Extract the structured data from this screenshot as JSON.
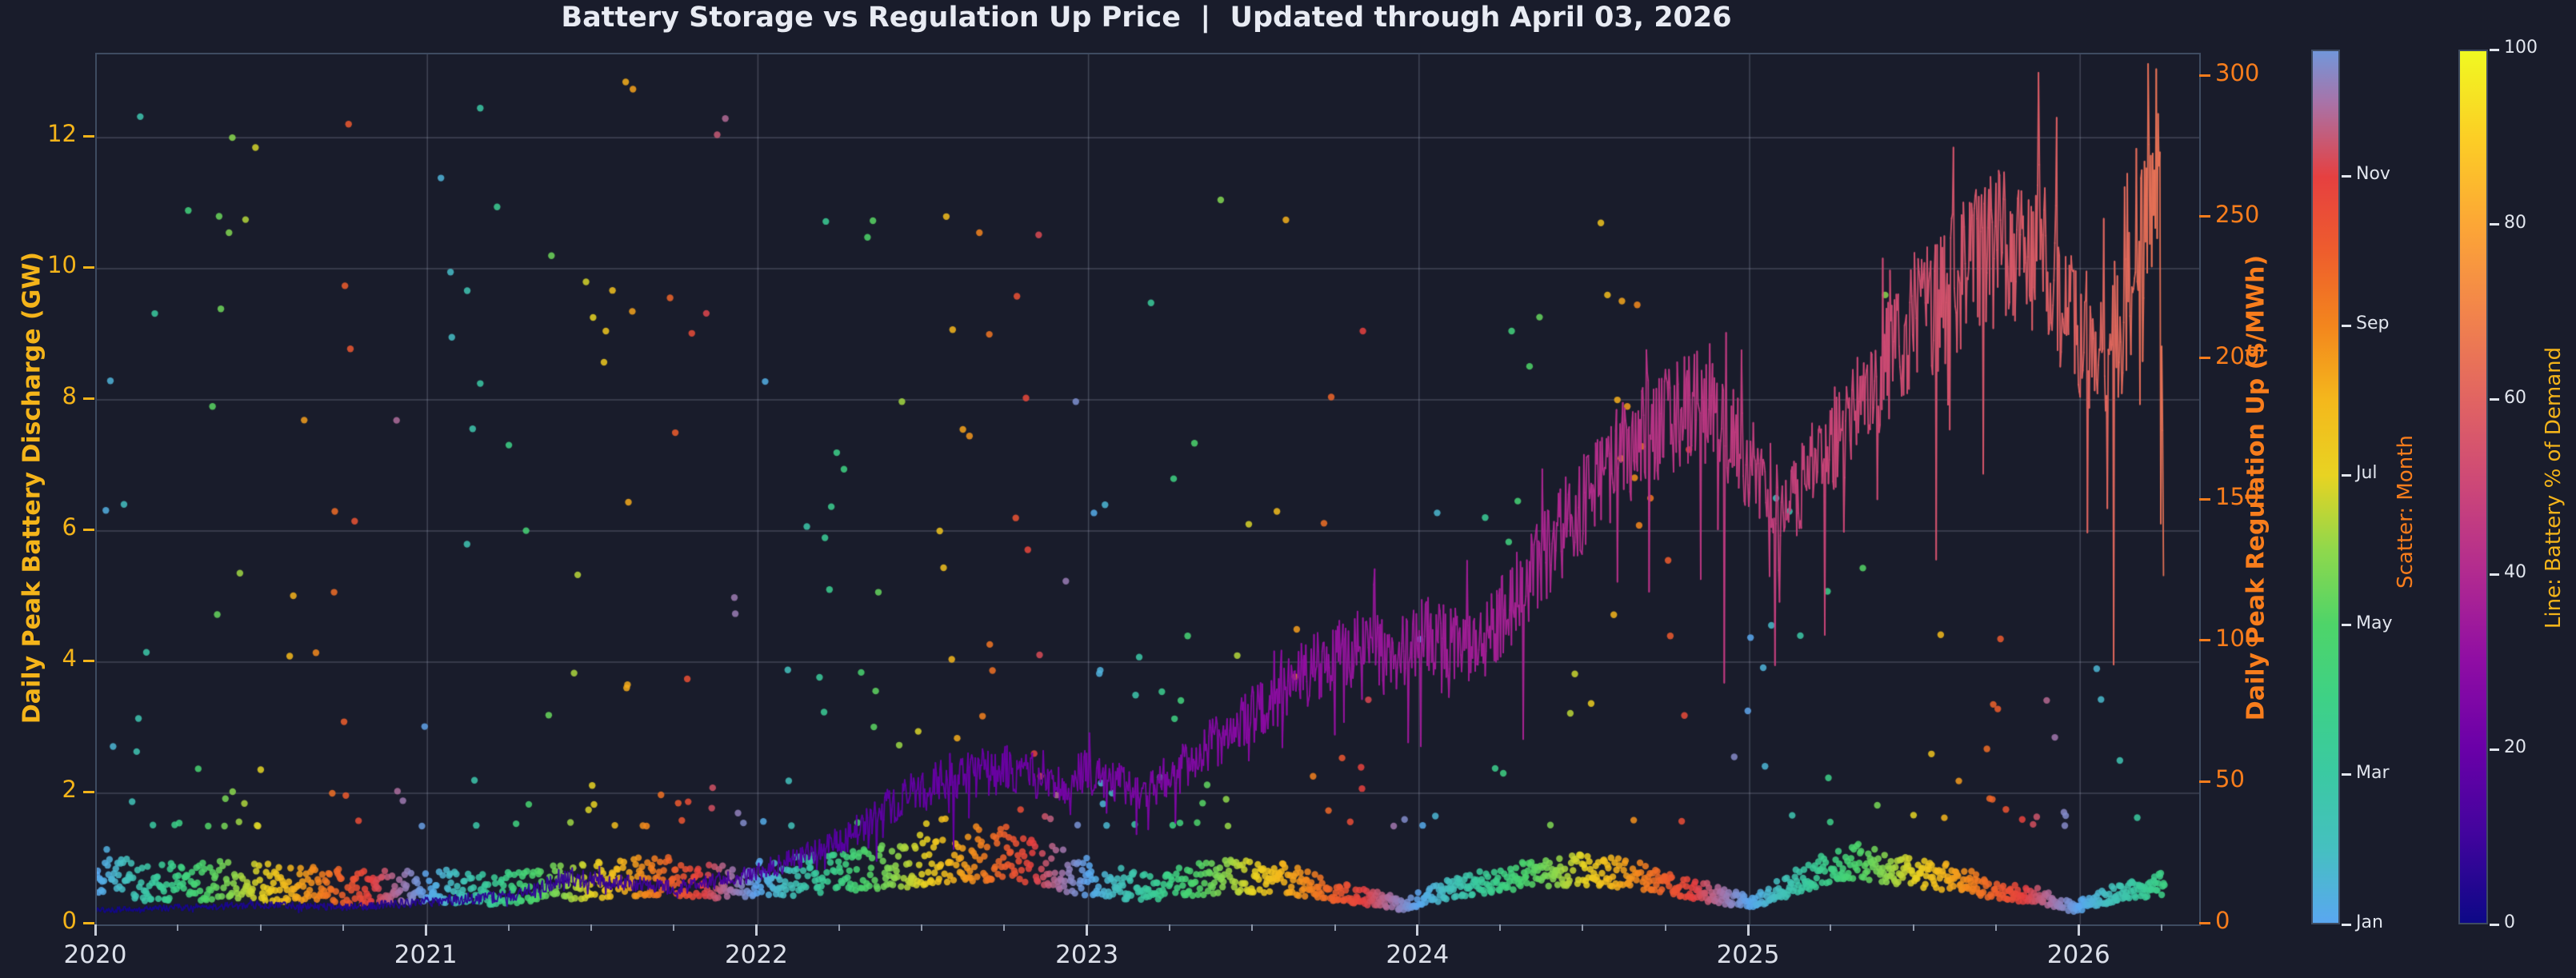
{
  "colors": {
    "background": "#191c2b",
    "plot_border": "#3e4b61",
    "title_text": "#e8ebf3",
    "x_tick_text": "#dce0ea",
    "grid": "rgba(158,167,184,0.30)",
    "left_accent": "#f4b41a",
    "right_accent": "#f87d1c",
    "colorbar_tick_text": "#e2e6ee"
  },
  "chart_data": {
    "type": "scatter+line",
    "title": "Battery Storage vs Regulation Up Price  |  Updated through April 03, 2026",
    "x_axis": {
      "tick_values": [
        2020,
        2021,
        2022,
        2023,
        2024,
        2025,
        2026
      ],
      "tick_labels": [
        "2020",
        "2021",
        "2022",
        "2023",
        "2024",
        "2025",
        "2026"
      ],
      "minor_tick_step": 0.25,
      "range": [
        2020.0,
        2026.36
      ]
    },
    "left_axis": {
      "label": "Daily Peak Battery Discharge (GW)",
      "ticks": [
        0,
        2,
        4,
        6,
        8,
        10,
        12
      ],
      "range": [
        0,
        13.27
      ],
      "color": "#f4b41a"
    },
    "right_axis": {
      "label": "Daily Peak Regulation Up ($/MWh)",
      "ticks": [
        0,
        50,
        100,
        150,
        200,
        250,
        300
      ],
      "range": [
        0,
        308
      ],
      "color": "#f87d1c"
    },
    "month_colorbar": {
      "label": "Scatter: Month",
      "tick_labels": [
        "Jan",
        "Mar",
        "May",
        "Jul",
        "Sep",
        "Nov"
      ],
      "tick_months": [
        1,
        3,
        5,
        7,
        9,
        11
      ],
      "domain": [
        1,
        12.69
      ],
      "colors": [
        "#5aa7f0",
        "#45c0c0",
        "#3bc9a2",
        "#3ed186",
        "#4ed469",
        "#8fd84c",
        "#e8d322",
        "#f4b81c",
        "#f3861d",
        "#ee5d2d",
        "#e64040",
        "#a873a8"
      ]
    },
    "pct_colorbar": {
      "label": "Line: Battery % of Demand",
      "ticks": [
        0,
        20,
        40,
        60,
        80,
        100
      ],
      "range": [
        0,
        100
      ],
      "plasma_stops": [
        "#0d0887",
        "#41049d",
        "#6a00a8",
        "#8f0da4",
        "#b12a90",
        "#cc4778",
        "#e16462",
        "#f2844b",
        "#fca636",
        "#fcce25",
        "#f0f921"
      ]
    },
    "line_series": {
      "name": "Daily Peak Regulation Up ($/MWh), colored by Battery % of Demand",
      "anchors": [
        [
          2020.0,
          5,
          1
        ],
        [
          2020.25,
          6,
          2
        ],
        [
          2020.5,
          7,
          3
        ],
        [
          2020.75,
          6,
          4
        ],
        [
          2021.0,
          8,
          5
        ],
        [
          2021.25,
          10,
          7
        ],
        [
          2021.42,
          17,
          8
        ],
        [
          2021.58,
          15,
          9
        ],
        [
          2021.75,
          13,
          11
        ],
        [
          2022.0,
          18,
          13
        ],
        [
          2022.25,
          30,
          16
        ],
        [
          2022.42,
          44,
          18
        ],
        [
          2022.58,
          52,
          20
        ],
        [
          2022.75,
          55,
          21
        ],
        [
          2022.92,
          50,
          23
        ],
        [
          2023.0,
          54,
          24
        ],
        [
          2023.17,
          47,
          25
        ],
        [
          2023.33,
          60,
          27
        ],
        [
          2023.5,
          74,
          29
        ],
        [
          2023.67,
          90,
          31
        ],
        [
          2023.83,
          99,
          33
        ],
        [
          2023.92,
          92,
          34
        ],
        [
          2024.0,
          103,
          35
        ],
        [
          2024.17,
          96,
          36
        ],
        [
          2024.33,
          122,
          38
        ],
        [
          2024.5,
          150,
          41
        ],
        [
          2024.625,
          167,
          43
        ],
        [
          2024.75,
          178,
          44
        ],
        [
          2024.875,
          183,
          45
        ],
        [
          2025.0,
          162,
          47
        ],
        [
          2025.125,
          147,
          48
        ],
        [
          2025.25,
          170,
          50
        ],
        [
          2025.375,
          188,
          51
        ],
        [
          2025.5,
          213,
          53
        ],
        [
          2025.625,
          228,
          55
        ],
        [
          2025.75,
          238,
          56
        ],
        [
          2025.875,
          240,
          58
        ],
        [
          2026.0,
          208,
          60
        ],
        [
          2026.08,
          196,
          61
        ],
        [
          2026.17,
          226,
          63
        ],
        [
          2026.23,
          272,
          65
        ],
        [
          2026.245,
          255,
          65
        ],
        [
          2026.253,
          112,
          65
        ]
      ],
      "noise_frac": [
        [
          2020,
          0.18
        ],
        [
          2021,
          0.22
        ],
        [
          2022,
          0.18
        ],
        [
          2023,
          0.15
        ],
        [
          2024,
          0.14
        ],
        [
          2025,
          0.11
        ],
        [
          2026.3,
          0.13
        ]
      ],
      "dip_prob": 0.05,
      "spike_prob": 0.05,
      "dip_depth": [
        [
          2020,
          0.15
        ],
        [
          2022,
          0.4
        ],
        [
          2024,
          0.5
        ],
        [
          2026.3,
          0.55
        ]
      ],
      "width": 1.8,
      "alpha": 0.95
    },
    "scatter_series": {
      "name": "Daily Peak Battery Discharge (GW), colored by Month",
      "seed": 11,
      "t_range": [
        2020.0,
        2026.255
      ],
      "points_per_year": 365,
      "base_gw": [
        [
          2020.0,
          0.75
        ],
        [
          2020.15,
          0.55
        ],
        [
          2020.4,
          0.62
        ],
        [
          2020.6,
          0.55
        ],
        [
          2020.85,
          0.5
        ],
        [
          2021.0,
          0.55
        ],
        [
          2021.2,
          0.48
        ],
        [
          2021.45,
          0.6
        ],
        [
          2021.7,
          0.68
        ],
        [
          2021.9,
          0.58
        ],
        [
          2022.1,
          0.68
        ],
        [
          2022.35,
          0.8
        ],
        [
          2022.55,
          0.95
        ],
        [
          2022.75,
          1.02
        ],
        [
          2022.9,
          0.78
        ],
        [
          2023.05,
          0.6
        ],
        [
          2023.2,
          0.52
        ],
        [
          2023.4,
          0.7
        ],
        [
          2023.6,
          0.66
        ],
        [
          2023.8,
          0.42
        ],
        [
          2023.95,
          0.3
        ],
        [
          2024.1,
          0.52
        ],
        [
          2024.3,
          0.72
        ],
        [
          2024.5,
          0.8
        ],
        [
          2024.65,
          0.72
        ],
        [
          2024.8,
          0.55
        ],
        [
          2024.95,
          0.38
        ],
        [
          2025.02,
          0.34
        ],
        [
          2025.15,
          0.65
        ],
        [
          2025.3,
          0.95
        ],
        [
          2025.45,
          0.82
        ],
        [
          2025.6,
          0.68
        ],
        [
          2025.75,
          0.52
        ],
        [
          2025.88,
          0.42
        ],
        [
          2025.98,
          0.24
        ],
        [
          2026.1,
          0.45
        ],
        [
          2026.2,
          0.55
        ],
        [
          2026.26,
          0.62
        ]
      ],
      "spread": [
        [
          2020,
          0.5
        ],
        [
          2023,
          0.42
        ],
        [
          2024,
          0.3
        ],
        [
          2026.3,
          0.3
        ]
      ],
      "outlier_prob": [
        [
          2020,
          0.1
        ],
        [
          2021,
          0.11
        ],
        [
          2022,
          0.13
        ],
        [
          2022.7,
          0.16
        ],
        [
          2023.2,
          0.15
        ],
        [
          2023.8,
          0.12
        ],
        [
          2024,
          0.08
        ],
        [
          2025,
          0.07
        ],
        [
          2026.3,
          0.05
        ]
      ],
      "outlier_max": [
        [
          2020,
          12.3
        ],
        [
          2021,
          13.0
        ],
        [
          2021.7,
          13.0
        ],
        [
          2022,
          12.0
        ],
        [
          2022.7,
          10.8
        ],
        [
          2023,
          11.3
        ],
        [
          2023.6,
          11.2
        ],
        [
          2024,
          10.2
        ],
        [
          2024.7,
          10.8
        ],
        [
          2025.1,
          9.8
        ],
        [
          2025.5,
          7.0
        ],
        [
          2025.9,
          4.0
        ],
        [
          2026.3,
          3.0
        ]
      ],
      "outlier_min": 1.5,
      "outlier_pow": 2.7,
      "radius": 4.2,
      "alpha": 0.85,
      "notable_outliers": [
        [
          2020.15,
          4.15
        ],
        [
          2020.35,
          7.9
        ],
        [
          2020.37,
          10.8
        ],
        [
          2020.4,
          10.55
        ],
        [
          2020.41,
          12.0
        ],
        [
          2020.45,
          10.75
        ],
        [
          2020.48,
          11.85
        ],
        [
          2020.72,
          6.3
        ],
        [
          2020.78,
          6.15
        ],
        [
          2021.07,
          9.95
        ],
        [
          2021.12,
          5.8
        ],
        [
          2021.16,
          12.45
        ],
        [
          2021.16,
          8.25
        ],
        [
          2021.48,
          9.8
        ],
        [
          2021.54,
          9.05
        ],
        [
          2021.56,
          9.67
        ],
        [
          2021.6,
          12.85
        ],
        [
          2021.62,
          9.35
        ],
        [
          2021.75,
          7.5
        ],
        [
          2022.55,
          6.0
        ],
        [
          2022.62,
          7.55
        ],
        [
          2022.64,
          7.45
        ],
        [
          2022.67,
          10.55
        ],
        [
          2022.7,
          9.0
        ],
        [
          2022.78,
          6.2
        ],
        [
          2023.05,
          6.4
        ],
        [
          2023.3,
          4.4
        ],
        [
          2023.4,
          11.05
        ],
        [
          2023.45,
          4.1
        ],
        [
          2023.57,
          6.3
        ],
        [
          2023.63,
          4.5
        ],
        [
          2023.83,
          9.05
        ],
        [
          2024.28,
          9.05
        ],
        [
          2024.55,
          10.7
        ],
        [
          2024.57,
          9.6
        ],
        [
          2024.6,
          8.0
        ],
        [
          2024.63,
          7.9
        ],
        [
          2024.66,
          9.45
        ],
        [
          2024.7,
          6.5
        ],
        [
          2024.76,
          4.4
        ],
        [
          2025.08,
          6.5
        ],
        [
          2025.12,
          6.3
        ],
        [
          2025.41,
          9.6
        ],
        [
          2025.55,
          2.6
        ],
        [
          2026.05,
          3.9
        ],
        [
          2026.12,
          2.5
        ]
      ]
    }
  }
}
